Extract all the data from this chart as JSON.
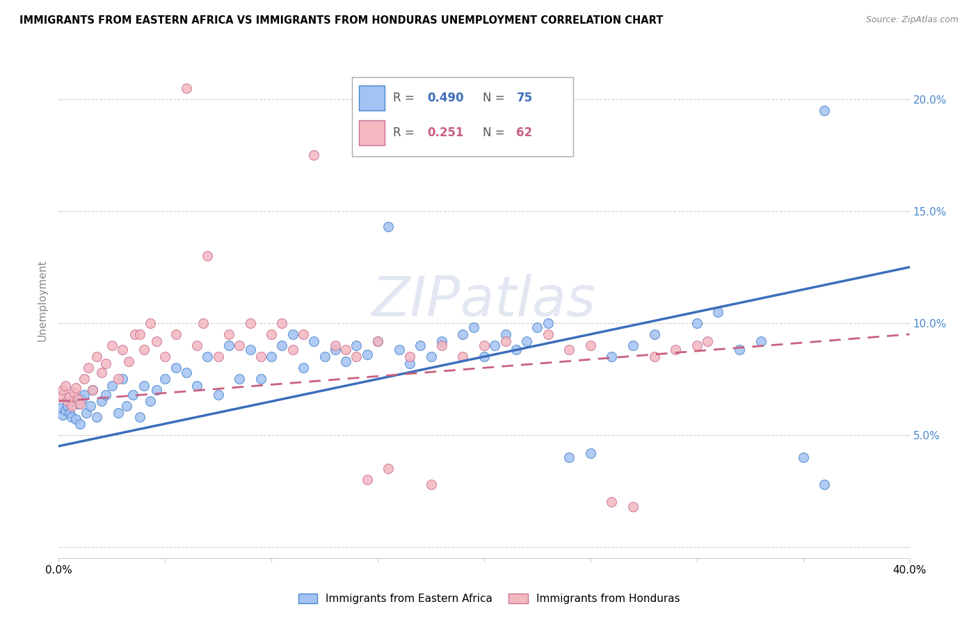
{
  "title": "IMMIGRANTS FROM EASTERN AFRICA VS IMMIGRANTS FROM HONDURAS UNEMPLOYMENT CORRELATION CHART",
  "source": "Source: ZipAtlas.com",
  "ylabel": "Unemployment",
  "yticks": [
    0.0,
    0.05,
    0.1,
    0.15,
    0.2
  ],
  "ytick_labels": [
    "",
    "5.0%",
    "10.0%",
    "15.0%",
    "20.0%"
  ],
  "xlim": [
    0.0,
    0.4
  ],
  "ylim": [
    -0.005,
    0.225
  ],
  "blue_R": 0.49,
  "blue_N": 75,
  "pink_R": 0.251,
  "pink_N": 62,
  "blue_color": "#a4c2f4",
  "pink_color": "#f4b8c1",
  "blue_edge_color": "#4a86c8",
  "pink_edge_color": "#c87090",
  "blue_line_color": "#3c6eba",
  "pink_line_color": "#c86080",
  "right_axis_color": "#4a86c8",
  "watermark_text": "ZIPatlas",
  "legend_label_blue": "Immigrants from Eastern Africa",
  "legend_label_pink": "Immigrants from Honduras",
  "blue_x": [
    0.001,
    0.002,
    0.003,
    0.004,
    0.005,
    0.006,
    0.007,
    0.008,
    0.009,
    0.01,
    0.011,
    0.012,
    0.013,
    0.015,
    0.016,
    0.018,
    0.02,
    0.022,
    0.025,
    0.028,
    0.03,
    0.032,
    0.035,
    0.038,
    0.04,
    0.043,
    0.046,
    0.05,
    0.055,
    0.06,
    0.065,
    0.07,
    0.075,
    0.08,
    0.085,
    0.09,
    0.095,
    0.1,
    0.105,
    0.11,
    0.115,
    0.12,
    0.125,
    0.13,
    0.135,
    0.14,
    0.145,
    0.15,
    0.155,
    0.16,
    0.165,
    0.17,
    0.175,
    0.18,
    0.19,
    0.195,
    0.2,
    0.205,
    0.21,
    0.215,
    0.22,
    0.225,
    0.23,
    0.24,
    0.25,
    0.26,
    0.27,
    0.28,
    0.3,
    0.31,
    0.32,
    0.33,
    0.35,
    0.36,
    0.36
  ],
  "blue_y": [
    0.062,
    0.059,
    0.061,
    0.063,
    0.06,
    0.058,
    0.065,
    0.057,
    0.064,
    0.055,
    0.066,
    0.068,
    0.06,
    0.063,
    0.07,
    0.058,
    0.065,
    0.068,
    0.072,
    0.06,
    0.075,
    0.063,
    0.068,
    0.058,
    0.072,
    0.065,
    0.07,
    0.075,
    0.08,
    0.078,
    0.072,
    0.085,
    0.068,
    0.09,
    0.075,
    0.088,
    0.075,
    0.085,
    0.09,
    0.095,
    0.08,
    0.092,
    0.085,
    0.088,
    0.083,
    0.09,
    0.086,
    0.092,
    0.143,
    0.088,
    0.082,
    0.09,
    0.085,
    0.092,
    0.095,
    0.098,
    0.085,
    0.09,
    0.095,
    0.088,
    0.092,
    0.098,
    0.1,
    0.04,
    0.042,
    0.085,
    0.09,
    0.095,
    0.1,
    0.105,
    0.088,
    0.092,
    0.04,
    0.028,
    0.195
  ],
  "pink_x": [
    0.001,
    0.002,
    0.003,
    0.004,
    0.005,
    0.006,
    0.007,
    0.008,
    0.009,
    0.01,
    0.012,
    0.014,
    0.016,
    0.018,
    0.02,
    0.022,
    0.025,
    0.028,
    0.03,
    0.033,
    0.036,
    0.04,
    0.043,
    0.046,
    0.05,
    0.055,
    0.06,
    0.065,
    0.07,
    0.075,
    0.08,
    0.085,
    0.09,
    0.095,
    0.1,
    0.105,
    0.11,
    0.115,
    0.12,
    0.13,
    0.135,
    0.14,
    0.145,
    0.15,
    0.155,
    0.165,
    0.175,
    0.18,
    0.19,
    0.2,
    0.21,
    0.23,
    0.24,
    0.25,
    0.26,
    0.27,
    0.28,
    0.29,
    0.3,
    0.305,
    0.038,
    0.068
  ],
  "pink_y": [
    0.068,
    0.07,
    0.072,
    0.065,
    0.067,
    0.063,
    0.069,
    0.071,
    0.066,
    0.064,
    0.075,
    0.08,
    0.07,
    0.085,
    0.078,
    0.082,
    0.09,
    0.075,
    0.088,
    0.083,
    0.095,
    0.088,
    0.1,
    0.092,
    0.085,
    0.095,
    0.205,
    0.09,
    0.13,
    0.085,
    0.095,
    0.09,
    0.1,
    0.085,
    0.095,
    0.1,
    0.088,
    0.095,
    0.175,
    0.09,
    0.088,
    0.085,
    0.03,
    0.092,
    0.035,
    0.085,
    0.028,
    0.09,
    0.085,
    0.09,
    0.092,
    0.095,
    0.088,
    0.09,
    0.02,
    0.018,
    0.085,
    0.088,
    0.09,
    0.092,
    0.095,
    0.1
  ]
}
